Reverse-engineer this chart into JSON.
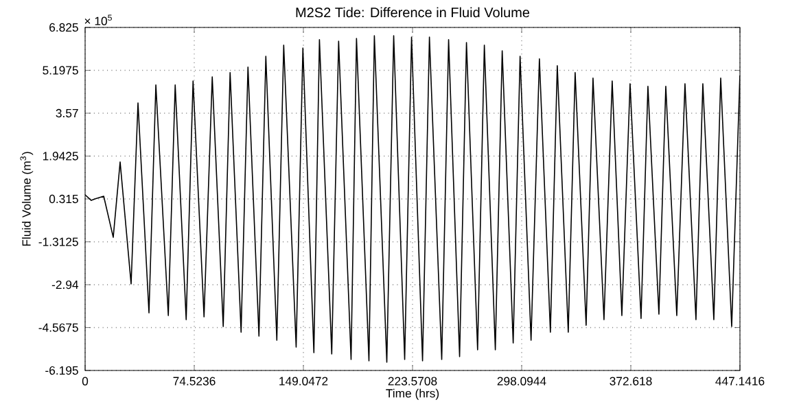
{
  "chart_data": {
    "type": "line",
    "title": "M2S2 Tide: Difference in Fluid Volume",
    "xlabel": "Time (hrs)",
    "ylabel": "Fluid Volume (m$^{3}$)",
    "annotations": [
      "× 10$^{5}$"
    ],
    "xlim": [
      0,
      447.1416
    ],
    "ylim": [
      -6.195,
      6.825
    ],
    "xticks": [
      0,
      74.5236,
      149.0472,
      223.5708,
      298.0944,
      372.618,
      447.1416
    ],
    "yticks": [
      -6.195,
      -4.5675,
      -2.94,
      -1.3125,
      0.315,
      1.9425,
      3.57,
      5.1975,
      6.825
    ],
    "grid": true,
    "series": [
      {
        "color": "#000000",
        "x": [
          0,
          4.2,
          7.0,
          12.7,
          19.2,
          23.9,
          31.4,
          36.1,
          43.6,
          48.3,
          56.8,
          61.5,
          69.0,
          73.7,
          81.2,
          86.8,
          94.3,
          99.0,
          106.5,
          111.2,
          118.7,
          123.4,
          130.9,
          135.6,
          144.1,
          148.7,
          156.2,
          160.0,
          168.4,
          173.1,
          181.6,
          185.3,
          193.8,
          197.5,
          206.0,
          210.7,
          218.2,
          222.9,
          230.4,
          235.1,
          243.5,
          248.2,
          255.7,
          260.4,
          268.0,
          272.6,
          280.1,
          284.8,
          292.3,
          297.0,
          304.5,
          310.2,
          317.7,
          322.4,
          329.9,
          334.6,
          342.1,
          346.8,
          354.3,
          359.9,
          366.5,
          372.1,
          379.6,
          384.3,
          391.8,
          396.5,
          404.0,
          409.6,
          417.1,
          421.8,
          429.3,
          434.0,
          441.5,
          447.1
        ],
        "values": [
          0.47,
          0.26,
          0.32,
          0.42,
          -1.14,
          1.72,
          -2.91,
          3.96,
          -4.01,
          4.64,
          -4.11,
          4.64,
          -4.27,
          4.79,
          -4.16,
          4.95,
          -4.53,
          5.11,
          -4.74,
          5.32,
          -4.89,
          5.73,
          -5.05,
          6.15,
          -5.31,
          6.04,
          -5.52,
          6.36,
          -5.57,
          6.3,
          -5.78,
          6.41,
          -5.83,
          6.51,
          -5.88,
          6.51,
          -5.78,
          6.46,
          -5.83,
          6.46,
          -5.78,
          6.36,
          -5.67,
          6.25,
          -5.41,
          6.15,
          -5.41,
          5.94,
          -5.15,
          5.73,
          -5.05,
          5.63,
          -4.74,
          5.37,
          -4.74,
          5.11,
          -4.48,
          4.9,
          -4.27,
          4.79,
          -4.11,
          4.69,
          -4.22,
          4.59,
          -4.06,
          4.59,
          -4.11,
          4.69,
          -4.27,
          4.69,
          -4.27,
          4.9,
          -4.53,
          5.0
        ]
      }
    ]
  }
}
